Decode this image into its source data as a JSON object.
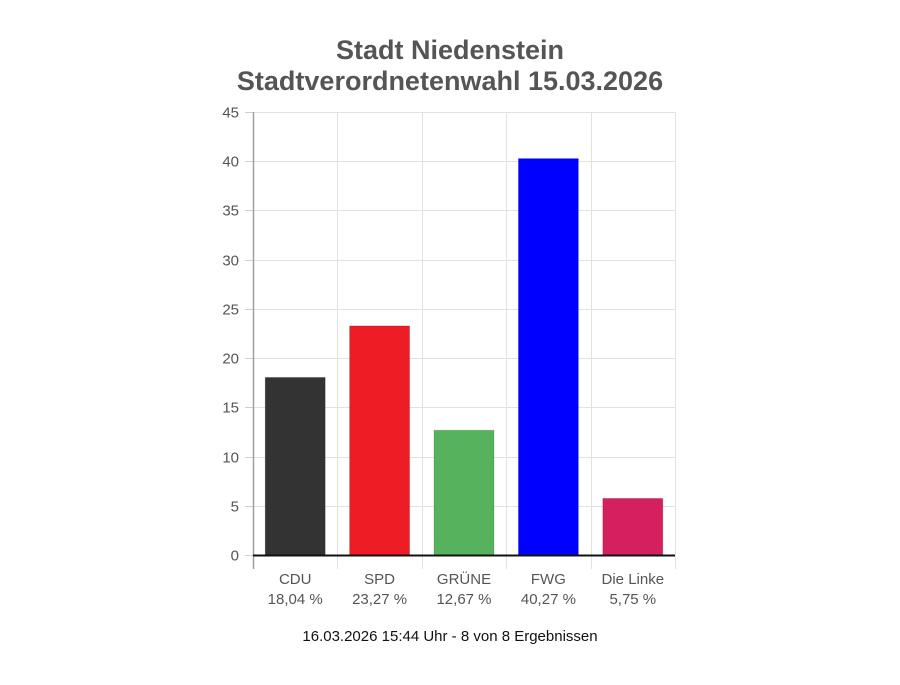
{
  "header": {
    "title_line1": "Stadt Niedenstein",
    "title_line2": "Stadtverordnetenwahl 15.03.2026"
  },
  "footer": {
    "status": "16.03.2026 15:44 Uhr - 8 von 8 Ergebnissen"
  },
  "chart_data": {
    "type": "bar",
    "title": "Stadt Niedenstein Stadtverordnetenwahl 15.03.2026",
    "xlabel": "",
    "ylabel": "",
    "ylim": [
      0,
      45
    ],
    "yticks": [
      0,
      5,
      10,
      15,
      20,
      25,
      30,
      35,
      40,
      45
    ],
    "grid": true,
    "legend": "none",
    "categories": [
      "CDU",
      "SPD",
      "GRÜNE",
      "FWG",
      "Die Linke"
    ],
    "values": [
      18.04,
      23.27,
      12.67,
      40.27,
      5.75
    ],
    "value_labels": [
      "18,04 %",
      "23,27 %",
      "12,67 %",
      "40,27 %",
      "5,75 %"
    ],
    "colors": [
      "#333333",
      "#ee1c25",
      "#56b25c",
      "#0000ff",
      "#d4205f"
    ]
  }
}
